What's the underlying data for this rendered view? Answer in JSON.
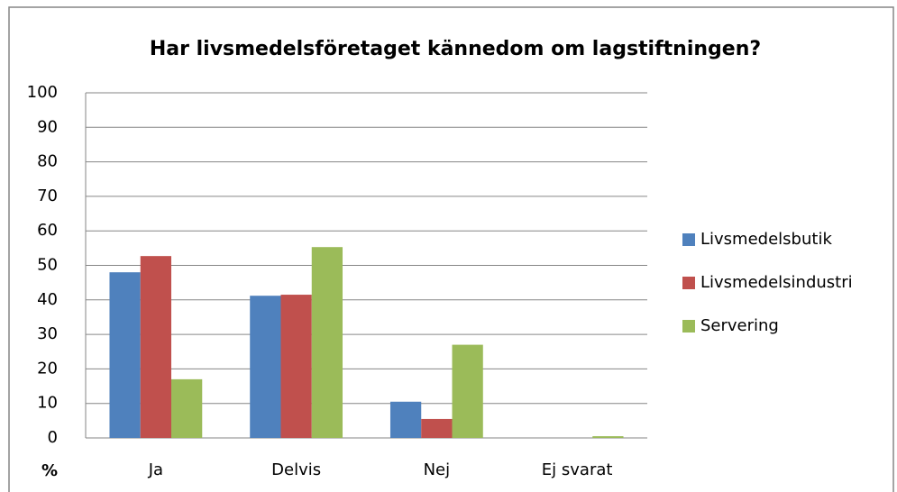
{
  "chart_data": {
    "type": "bar",
    "title": "Har livsmedelsföretaget kännedom om lagstiftningen?",
    "y_label": "%",
    "categories": [
      "Ja",
      "Delvis",
      "Nej",
      "Ej svarat"
    ],
    "series": [
      {
        "name": "Livsmedelsbutik",
        "color": "#4f81bd",
        "values": [
          48,
          41.2,
          10.5,
          0
        ]
      },
      {
        "name": "Livsmedelsindustri",
        "color": "#c0504d",
        "values": [
          52.7,
          41.5,
          5.5,
          0
        ]
      },
      {
        "name": "Servering",
        "color": "#9bbb59",
        "values": [
          17,
          55.3,
          27,
          0.5
        ]
      }
    ],
    "ylim": [
      0,
      100
    ],
    "yticks": [
      0,
      10,
      20,
      30,
      40,
      50,
      60,
      70,
      80,
      90,
      100
    ],
    "grid": true,
    "legend": "right"
  }
}
